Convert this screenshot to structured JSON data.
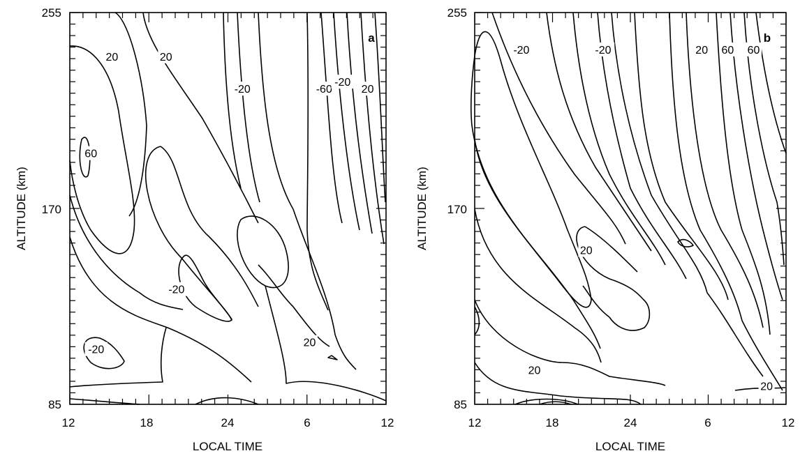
{
  "chart_data": [
    {
      "panel": "a",
      "type": "line",
      "xlabel": "LOCAL TIME",
      "ylabel": "ALTITUDE (km)",
      "x_ticks": [
        "12",
        "18",
        "24",
        "6",
        "12"
      ],
      "y_ticks": [
        "85",
        "170",
        "255"
      ],
      "contour_labels": [
        {
          "text": "20",
          "x": 15.2,
          "y": 236
        },
        {
          "text": "20",
          "x": 19.3,
          "y": 236
        },
        {
          "text": "-20",
          "x": 25.1,
          "y": 222
        },
        {
          "text": "-60",
          "x": 31.3,
          "y": 222
        },
        {
          "text": "-20",
          "x": 32.7,
          "y": 225
        },
        {
          "text": "20",
          "x": 34.6,
          "y": 222
        },
        {
          "text": "60",
          "x": 13.6,
          "y": 194
        },
        {
          "text": "-20",
          "x": 20.1,
          "y": 135
        },
        {
          "text": "20",
          "x": 30.2,
          "y": 112
        },
        {
          "text": "-20",
          "x": 14.0,
          "y": 109
        }
      ]
    },
    {
      "panel": "b",
      "type": "line",
      "xlabel": "LOCAL TIME",
      "ylabel": "ALTITUDE (km)",
      "x_ticks": [
        "12",
        "18",
        "24",
        "6",
        "12"
      ],
      "y_ticks": [
        "85",
        "170",
        "255"
      ],
      "contour_labels": [
        {
          "text": "-20",
          "x": 15.6,
          "y": 239
        },
        {
          "text": "-20",
          "x": 21.9,
          "y": 239
        },
        {
          "text": "20",
          "x": 29.5,
          "y": 239
        },
        {
          "text": "60",
          "x": 31.5,
          "y": 239
        },
        {
          "text": "60",
          "x": 33.5,
          "y": 239
        },
        {
          "text": "20",
          "x": 20.6,
          "y": 152
        },
        {
          "text": "20",
          "x": 16.6,
          "y": 100
        },
        {
          "text": "20",
          "x": 34.5,
          "y": 93
        }
      ]
    }
  ],
  "panel_letters": [
    "a",
    "b"
  ]
}
